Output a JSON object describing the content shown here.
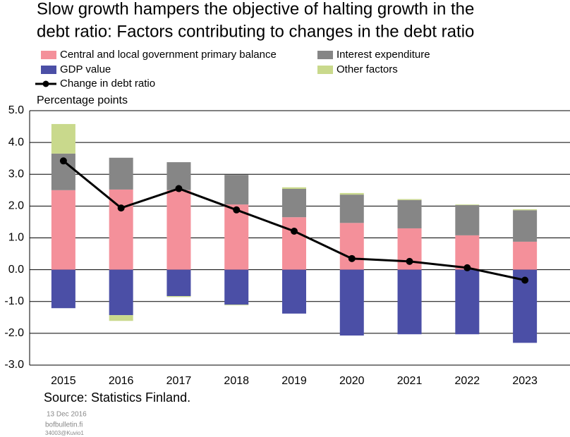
{
  "chart_data": {
    "type": "bar",
    "title": [
      "Slow growth hampers the objective of halting growth in the",
      "debt ratio: Factors contributing to changes in the debt ratio"
    ],
    "y_label": "Percentage points",
    "source": "Source: Statistics Finland.",
    "date": "13 Dec 2016",
    "site": "bofbulletin.fi",
    "code": "34003@Kuvio1",
    "categories": [
      "2015",
      "2016",
      "2017",
      "2018",
      "2019",
      "2020",
      "2021",
      "2022",
      "2023"
    ],
    "series": [
      {
        "name": "Central and local government primary balance",
        "color": "#f4909a",
        "values": [
          2.5,
          2.52,
          2.5,
          2.05,
          1.65,
          1.47,
          1.3,
          1.08,
          0.88
        ]
      },
      {
        "name": "Interest expenditure",
        "color": "#868686",
        "values": [
          1.15,
          1.0,
          0.88,
          0.93,
          0.89,
          0.89,
          0.89,
          0.95,
          0.99
        ]
      },
      {
        "name": "GDP value",
        "color": "#4b4fa6",
        "values": [
          -1.21,
          -1.43,
          -0.83,
          -1.1,
          -1.38,
          -2.07,
          -2.03,
          -2.03,
          -2.3
        ]
      },
      {
        "name": "Other factors",
        "color": "#c9d98c",
        "values": [
          0.93,
          -0.18,
          -0.03,
          -0.02,
          0.05,
          0.05,
          0.03,
          0.02,
          0.03
        ]
      },
      {
        "name": "Change in debt ratio",
        "color": "#000000",
        "type": "line",
        "values": [
          3.42,
          1.94,
          2.55,
          1.88,
          1.21,
          0.35,
          0.26,
          0.06,
          -0.33
        ]
      }
    ],
    "ylim": [
      -3,
      5
    ],
    "yticks": [
      {
        "value": -3,
        "label": "-3.0"
      },
      {
        "value": -2,
        "label": "-2.0"
      },
      {
        "value": -1,
        "label": "-1.0"
      },
      {
        "value": 0,
        "label": "0.0"
      },
      {
        "value": 1,
        "label": "1.0"
      },
      {
        "value": 2,
        "label": "2.0"
      },
      {
        "value": 3,
        "label": "3.0"
      },
      {
        "value": 4,
        "label": "4.0"
      },
      {
        "value": 5,
        "label": "5.0"
      }
    ],
    "grid": true
  }
}
